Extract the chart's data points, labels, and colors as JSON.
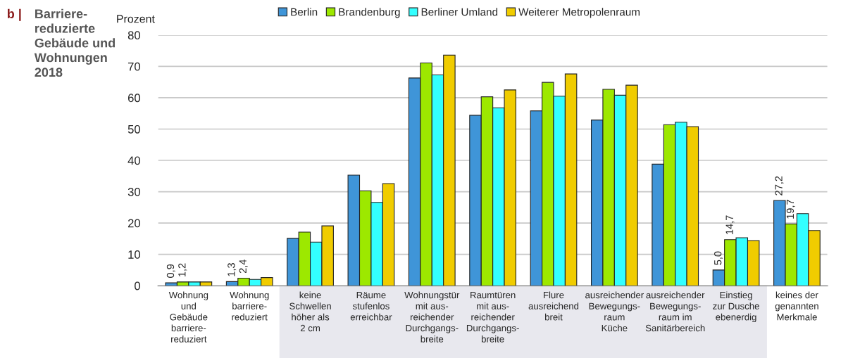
{
  "chart_data": {
    "type": "bar",
    "title": "Barriere-\nreduzierte\nGebäude und\nWohnungen\n2018",
    "annotations": [
      "b |"
    ],
    "ylabel": "Prozent",
    "categories": [
      "Wohnung\nund\nGebäude\nbarriere-\nreduziert",
      "Wohnung\nbarriere-\nreduziert",
      "keine\nSchwellen\nhöher als\n2 cm",
      "Räume\nstufenlos\nerreichbar",
      "Wohnungstür\nmit aus-\nreichender\nDurchgangs-\nbreite",
      "Raumtüren\nmit aus-\nreichender\nDurchgangs-\nbreite",
      "Flure\nausreichend\nbreit",
      "ausreichender\nBewegungs-\nraum\nKüche",
      "ausreichender\nBewegungs-\nraum im\nSanitärbereich",
      "Einstieg\nzur Dusche\nebenerdig",
      "keines der\ngenannten\nMerkmale"
    ],
    "series": [
      {
        "name": "Berlin",
        "color": "#3f95d8",
        "values": [
          0.9,
          1.3,
          15.1,
          35.3,
          66.3,
          54.4,
          55.8,
          52.9,
          38.8,
          5.0,
          27.2
        ],
        "value_labels": [
          "0,9",
          "1,3",
          null,
          null,
          null,
          null,
          null,
          null,
          null,
          "5,0",
          "27,2"
        ]
      },
      {
        "name": "Brandenburg",
        "color": "#9de800",
        "values": [
          1.2,
          2.4,
          17.1,
          30.3,
          71.1,
          60.3,
          64.9,
          62.7,
          51.4,
          14.7,
          19.7
        ],
        "value_labels": [
          "1,2",
          "2,4",
          null,
          null,
          null,
          null,
          null,
          null,
          null,
          "14,7",
          "19,7"
        ]
      },
      {
        "name": "Berliner Umland",
        "color": "#33ffff",
        "values": [
          1.2,
          2.0,
          13.9,
          26.6,
          67.3,
          56.8,
          60.5,
          60.8,
          52.2,
          15.3,
          23.0
        ]
      },
      {
        "name": "Weiterer Metropolenraum",
        "color": "#f0cc00",
        "values": [
          1.2,
          2.6,
          19.1,
          32.6,
          73.6,
          62.5,
          67.6,
          64.0,
          50.8,
          14.4,
          17.6
        ]
      }
    ],
    "ylim": [
      0,
      80
    ],
    "yticks": [
      0,
      10,
      20,
      30,
      40,
      50,
      60,
      70,
      80
    ],
    "grid": "y",
    "legend": "top"
  }
}
